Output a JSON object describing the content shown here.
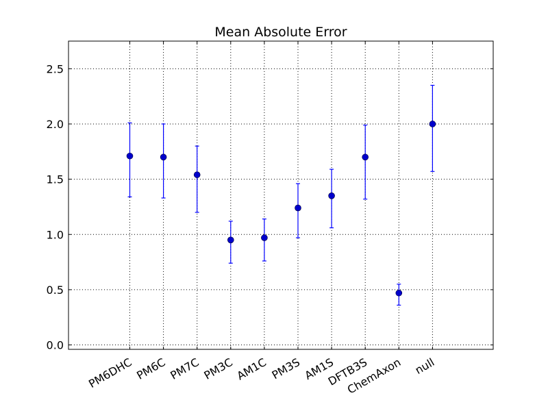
{
  "chart_data": {
    "type": "scatter",
    "title": "Mean Absolute Error",
    "xlabel": "",
    "ylabel": "",
    "categories": [
      "PM6DHC",
      "PM6C",
      "PM7C",
      "PM3C",
      "AM1C",
      "PM3S",
      "AM1S",
      "DFTB3S",
      "ChemAxon",
      "null"
    ],
    "values": [
      1.71,
      1.7,
      1.54,
      0.95,
      0.97,
      1.24,
      1.35,
      1.7,
      0.47,
      2.0
    ],
    "error_low": [
      1.34,
      1.33,
      1.2,
      0.74,
      0.76,
      0.97,
      1.06,
      1.32,
      0.36,
      1.57
    ],
    "error_high": [
      2.01,
      2.0,
      1.8,
      1.12,
      1.14,
      1.46,
      1.59,
      1.99,
      0.55,
      2.35
    ],
    "ylim": [
      -0.04,
      2.75
    ],
    "yticks": [
      "0.0",
      "0.5",
      "1.0",
      "1.5",
      "2.0",
      "2.5"
    ],
    "xtick_rotation": 30,
    "grid": true,
    "grid_style": "dotted",
    "colors": {
      "marker": "#0000cc",
      "errorbar": "#0000ff",
      "grid": "#000000",
      "axes": "#000000"
    }
  }
}
